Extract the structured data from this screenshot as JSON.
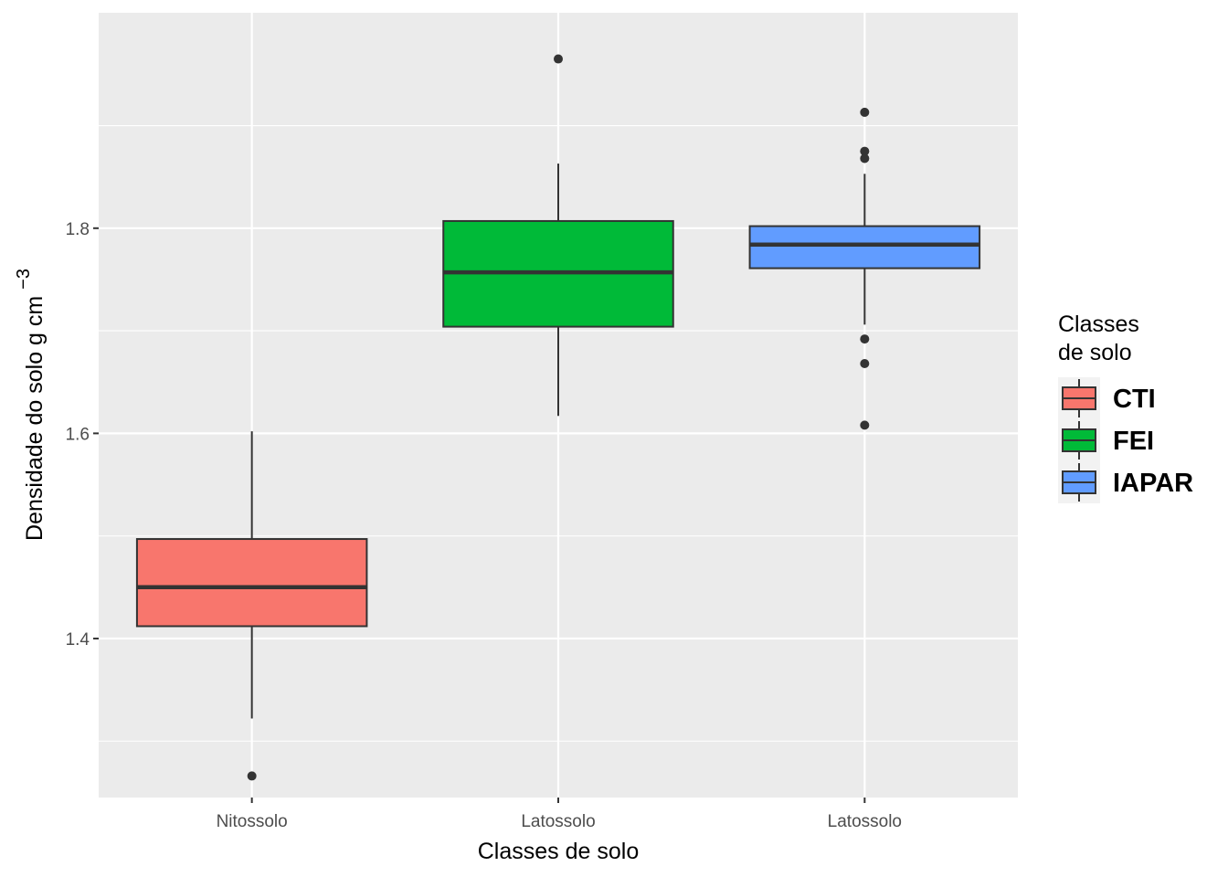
{
  "chart_data": {
    "type": "boxplot",
    "xlabel": "Classes de solo",
    "ylabel": "Densidade do solo g cm",
    "ylabel_superscript": "−3",
    "ylim": [
      1.245,
      2.01
    ],
    "yticks": [
      1.4,
      1.6,
      1.8
    ],
    "ytick_labels": [
      "1.4",
      "1.6",
      "1.8"
    ],
    "grid": true,
    "legend": {
      "title_lines": [
        "Classes",
        "de solo"
      ],
      "position": "right"
    },
    "groups": [
      {
        "category": "Nitossolo",
        "legend_label": "CTI",
        "color": "#F8766D",
        "whisker_low": 1.322,
        "q1": 1.412,
        "median": 1.45,
        "q3": 1.497,
        "whisker_high": 1.602,
        "outliers": [
          1.266
        ]
      },
      {
        "category": "Latossolo",
        "legend_label": "FEI",
        "color": "#00BA38",
        "whisker_low": 1.617,
        "q1": 1.704,
        "median": 1.757,
        "q3": 1.807,
        "whisker_high": 1.863,
        "outliers": [
          1.965
        ]
      },
      {
        "category": "Latossolo",
        "legend_label": "IAPAR",
        "color": "#619CFF",
        "whisker_low": 1.706,
        "q1": 1.761,
        "median": 1.784,
        "q3": 1.802,
        "whisker_high": 1.853,
        "outliers": [
          1.913,
          1.875,
          1.868,
          1.692,
          1.668,
          1.608
        ]
      }
    ]
  }
}
